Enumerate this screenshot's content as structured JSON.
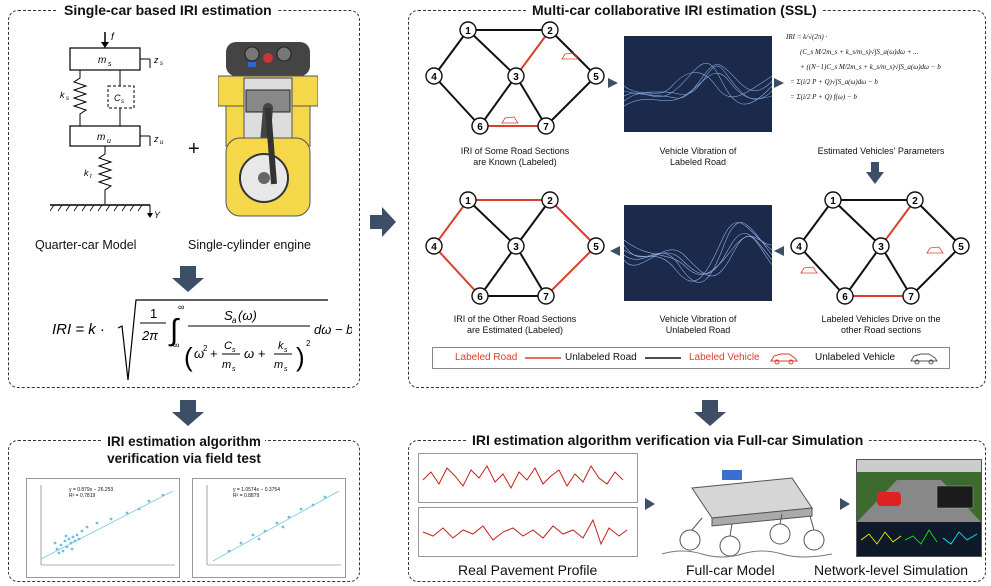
{
  "single_car": {
    "title": "Single-car based IRI estimation",
    "quarter_car_label": "Quarter-car Model",
    "engine_label": "Single-cylinder engine",
    "plus": "+",
    "quarter_car_symbols": {
      "f": "f",
      "ms": "m",
      "ms_sub": "s",
      "zs": "z",
      "zs_sub": "s",
      "ks": "k",
      "ks_sub": "s",
      "cs": "C",
      "cs_sub": "s",
      "mu": "m",
      "mu_sub": "u",
      "zu": "z",
      "zu_sub": "u",
      "kt": "k",
      "kt_sub": "t",
      "y": "Y"
    },
    "formula": {
      "lhs": "IRI = k ·",
      "frac_one": "1",
      "two_pi": "2π",
      "int_upper": "∞",
      "int_lower": "-∞",
      "numerator": "S",
      "numerator_sub": "a",
      "numerator_arg": "(ω)",
      "den_omega2": "ω",
      "den_plus1": "+",
      "den_c": "C",
      "den_c_sub": "s",
      "den_m1": "m",
      "den_m1_sub": "s",
      "den_omega": "ω +",
      "den_k": "k",
      "den_k_sub": "s",
      "den_m2": "m",
      "den_m2_sub": "s",
      "tail": "dω − b"
    }
  },
  "multi_car": {
    "title": "Multi-car collaborative IRI estimation  (SSL)",
    "captions": {
      "top_left": [
        "IRI of Some Road Sections",
        "are Known (Labeled)"
      ],
      "top_mid": [
        "Vehicle Vibration of",
        "Labeled Road"
      ],
      "top_right": [
        "Estimated Vehicles' Parameters"
      ],
      "bottom_right": [
        "Labeled Vehicles Drive on the",
        "other Road sections"
      ],
      "bottom_mid": [
        "Vehicle Vibration of",
        "Unlabeled Road"
      ],
      "bottom_left": [
        "IRI of the Other Road Sections",
        "are Estimated (Labeled)"
      ]
    },
    "node_labels": [
      "1",
      "2",
      "3",
      "4",
      "5",
      "6",
      "7"
    ],
    "legend": {
      "labeled_road": "Labeled Road",
      "unlabeled_road": "Unlabeled Road",
      "labeled_vehicle": "Labeled Vehicle",
      "unlabeled_vehicle": "Unlabeled Vehicle"
    },
    "equations": [
      "IRI = k/√(2π) ·",
      "(C_s M/2m_s + k_s/m_s)√∫S_a(ω)dω + ...",
      "+ ((N−1)C_s M/2m_s + k_s/m_s)√∫S_a(ω)dω − b",
      "= Σ(i/2 P + Q)√∫S_a(ω)dω − b",
      "= Σ(i/2 P + Q) f(ω) − b"
    ],
    "colors": {
      "labeled": "#d9402b",
      "unlabeled": "#111111"
    }
  },
  "field_test": {
    "title_line1": "IRI estimation algorithm",
    "title_line2": "verification via field test",
    "plot1_eq": [
      "y = 0.879x − 26.253",
      "R² = 0.7819"
    ],
    "plot2_eq": [
      "y = 1.0574x − 0.3754",
      "R² = 0.8879"
    ]
  },
  "full_car": {
    "title": "IRI estimation algorithm verification via Full-car Simulation",
    "label_profile": "Real Pavement Profile",
    "label_model": "Full-car Model",
    "label_network": "Network-level Simulation"
  }
}
